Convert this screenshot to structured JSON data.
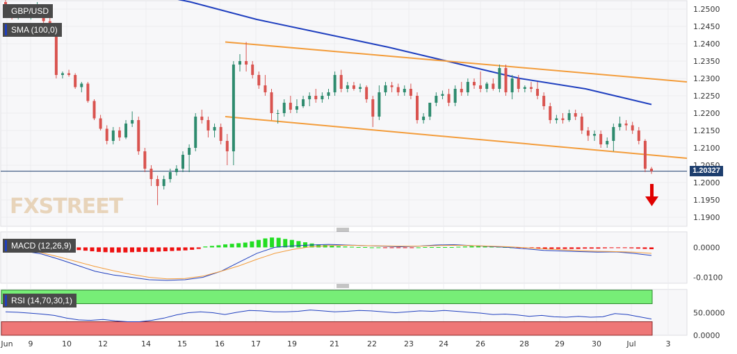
{
  "symbol": "GBP/USD",
  "sma_label": "SMA (100,0)",
  "macd_label": "MACD (12,26,9)",
  "rsi_label": "RSI (14,70,30,1)",
  "current_price": "1.20327",
  "watermark": "FXSTREET",
  "colors": {
    "bull": "#2e8b6e",
    "bear": "#d9534f",
    "sma": "#1f3fbf",
    "channel": "#f39c3a",
    "macd_pos": "#22dd22",
    "macd_neg": "#ee1111",
    "rsi_over": "#77ee77",
    "rsi_under": "#ee7777",
    "arrow": "#e00000"
  },
  "chart_data": [
    {
      "type": "candlestick",
      "title": "GBP/USD",
      "x_ticks": [
        "Jun",
        "9",
        "10",
        "12",
        "14",
        "15",
        "16",
        "17",
        "19",
        "21",
        "22",
        "23",
        "24",
        "26",
        "28",
        "29",
        "30",
        "Jul",
        "3"
      ],
      "y_ticks": [
        "1.2500",
        "1.2450",
        "1.2400",
        "1.2350",
        "1.2300",
        "1.2250",
        "1.2200",
        "1.2150",
        "1.2100",
        "1.2050",
        "1.2000",
        "1.1950",
        "1.1900"
      ],
      "ylim": [
        1.188,
        1.252
      ],
      "candles": [
        [
          1.252,
          1.254,
          1.248,
          1.25
        ],
        [
          1.25,
          1.251,
          1.247,
          1.2485
        ],
        [
          1.2485,
          1.2495,
          1.247,
          1.249
        ],
        [
          1.249,
          1.251,
          1.2475,
          1.248
        ],
        [
          1.248,
          1.249,
          1.247,
          1.2485
        ],
        [
          1.2485,
          1.252,
          1.2475,
          1.25
        ],
        [
          1.25,
          1.251,
          1.246,
          1.2465
        ],
        [
          1.2465,
          1.2475,
          1.242,
          1.243
        ],
        [
          1.243,
          1.244,
          1.23,
          1.231
        ],
        [
          1.231,
          1.232,
          1.23,
          1.2315
        ],
        [
          1.2315,
          1.2325,
          1.2305,
          1.231
        ],
        [
          1.231,
          1.2315,
          1.227,
          1.2275
        ],
        [
          1.2275,
          1.229,
          1.226,
          1.2285
        ],
        [
          1.2285,
          1.229,
          1.223,
          1.2235
        ],
        [
          1.2235,
          1.224,
          1.218,
          1.2185
        ],
        [
          1.2185,
          1.2195,
          1.215,
          1.2155
        ],
        [
          1.2155,
          1.2165,
          1.211,
          1.212
        ],
        [
          1.212,
          1.216,
          1.211,
          1.215
        ],
        [
          1.215,
          1.216,
          1.212,
          1.213
        ],
        [
          1.213,
          1.218,
          1.2125,
          1.217
        ],
        [
          1.217,
          1.2205,
          1.216,
          1.218
        ],
        [
          1.218,
          1.219,
          1.208,
          1.209
        ],
        [
          1.209,
          1.21,
          1.203,
          1.204
        ],
        [
          1.204,
          1.205,
          1.199,
          1.201
        ],
        [
          1.201,
          1.202,
          1.1935,
          1.199
        ],
        [
          1.199,
          1.202,
          1.198,
          1.201
        ],
        [
          1.201,
          1.204,
          1.2,
          1.203
        ],
        [
          1.203,
          1.205,
          1.202,
          1.204
        ],
        [
          1.204,
          1.209,
          1.203,
          1.208
        ],
        [
          1.208,
          1.211,
          1.203,
          1.21
        ],
        [
          1.21,
          1.22,
          1.209,
          1.219
        ],
        [
          1.219,
          1.221,
          1.217,
          1.218
        ],
        [
          1.218,
          1.219,
          1.213,
          1.215
        ],
        [
          1.215,
          1.217,
          1.213,
          1.216
        ],
        [
          1.216,
          1.217,
          1.211,
          1.212
        ],
        [
          1.212,
          1.214,
          1.205,
          1.209
        ],
        [
          1.209,
          1.235,
          1.205,
          1.234
        ],
        [
          1.234,
          1.237,
          1.232,
          1.235
        ],
        [
          1.235,
          1.2405,
          1.232,
          1.234
        ],
        [
          1.234,
          1.235,
          1.23,
          1.231
        ],
        [
          1.231,
          1.232,
          1.227,
          1.228
        ],
        [
          1.228,
          1.231,
          1.225,
          1.226
        ],
        [
          1.226,
          1.227,
          1.218,
          1.22
        ],
        [
          1.22,
          1.221,
          1.217,
          1.22
        ],
        [
          1.22,
          1.224,
          1.219,
          1.223
        ],
        [
          1.223,
          1.225,
          1.22,
          1.221
        ],
        [
          1.221,
          1.224,
          1.22,
          1.222
        ],
        [
          1.222,
          1.225,
          1.2215,
          1.224
        ],
        [
          1.224,
          1.226,
          1.222,
          1.225
        ],
        [
          1.225,
          1.227,
          1.223,
          1.224
        ],
        [
          1.224,
          1.226,
          1.223,
          1.225
        ],
        [
          1.225,
          1.227,
          1.224,
          1.226
        ],
        [
          1.226,
          1.232,
          1.225,
          1.231
        ],
        [
          1.231,
          1.2325,
          1.226,
          1.227
        ],
        [
          1.227,
          1.229,
          1.226,
          1.228
        ],
        [
          1.228,
          1.229,
          1.2265,
          1.227
        ],
        [
          1.227,
          1.2285,
          1.226,
          1.2275
        ],
        [
          1.2275,
          1.228,
          1.223,
          1.224
        ],
        [
          1.224,
          1.225,
          1.216,
          1.219
        ],
        [
          1.219,
          1.228,
          1.218,
          1.226
        ],
        [
          1.226,
          1.229,
          1.225,
          1.228
        ],
        [
          1.228,
          1.229,
          1.226,
          1.2275
        ],
        [
          1.2275,
          1.2285,
          1.225,
          1.226
        ],
        [
          1.226,
          1.228,
          1.225,
          1.227
        ],
        [
          1.227,
          1.2285,
          1.224,
          1.225
        ],
        [
          1.225,
          1.226,
          1.217,
          1.218
        ],
        [
          1.218,
          1.22,
          1.217,
          1.219
        ],
        [
          1.219,
          1.223,
          1.218,
          1.223
        ],
        [
          1.223,
          1.226,
          1.222,
          1.225
        ],
        [
          1.225,
          1.2265,
          1.224,
          1.2255
        ],
        [
          1.2255,
          1.227,
          1.222,
          1.223
        ],
        [
          1.223,
          1.228,
          1.222,
          1.227
        ],
        [
          1.227,
          1.229,
          1.225,
          1.226
        ],
        [
          1.226,
          1.23,
          1.225,
          1.229
        ],
        [
          1.229,
          1.23,
          1.227,
          1.228
        ],
        [
          1.228,
          1.232,
          1.226,
          1.227
        ],
        [
          1.227,
          1.229,
          1.226,
          1.2285
        ],
        [
          1.2285,
          1.23,
          1.2265,
          1.227
        ],
        [
          1.227,
          1.234,
          1.226,
          1.233
        ],
        [
          1.233,
          1.234,
          1.225,
          1.226
        ],
        [
          1.226,
          1.231,
          1.224,
          1.23
        ],
        [
          1.23,
          1.231,
          1.226,
          1.227
        ],
        [
          1.227,
          1.228,
          1.226,
          1.2275
        ],
        [
          1.2275,
          1.229,
          1.226,
          1.227
        ],
        [
          1.227,
          1.229,
          1.224,
          1.225
        ],
        [
          1.225,
          1.226,
          1.221,
          1.222
        ],
        [
          1.222,
          1.223,
          1.217,
          1.218
        ],
        [
          1.218,
          1.2195,
          1.217,
          1.2185
        ],
        [
          1.2185,
          1.22,
          1.217,
          1.218
        ],
        [
          1.218,
          1.221,
          1.2175,
          1.22
        ],
        [
          1.22,
          1.221,
          1.218,
          1.219
        ],
        [
          1.219,
          1.22,
          1.214,
          1.215
        ],
        [
          1.215,
          1.216,
          1.212,
          1.2135
        ],
        [
          1.2135,
          1.215,
          1.212,
          1.214
        ],
        [
          1.214,
          1.215,
          1.21,
          1.211
        ],
        [
          1.211,
          1.213,
          1.21,
          1.212
        ],
        [
          1.212,
          1.217,
          1.209,
          1.216
        ],
        [
          1.216,
          1.219,
          1.215,
          1.217
        ],
        [
          1.217,
          1.218,
          1.215,
          1.2165
        ],
        [
          1.2165,
          1.2175,
          1.214,
          1.215
        ],
        [
          1.215,
          1.216,
          1.211,
          1.212
        ],
        [
          1.212,
          1.2125,
          1.203,
          1.204
        ],
        [
          1.204,
          1.2045,
          1.2025,
          1.2033
        ]
      ],
      "sma_100": [
        1.256,
        1.252,
        1.247,
        1.243,
        1.239,
        1.2345,
        1.23,
        1.227,
        1.2225
      ],
      "channel_upper": [
        1.2405,
        1.229
      ],
      "channel_lower": [
        1.219,
        1.207
      ],
      "current_price": 1.20327
    },
    {
      "type": "bar",
      "title": "MACD (12,26,9)",
      "y_ticks": [
        "0.0000",
        "-0.0100"
      ],
      "ylim": [
        -0.0115,
        0.0045
      ],
      "histogram": [
        -0.0003,
        -0.0003,
        -0.0003,
        -0.0003,
        -0.0003,
        -0.0004,
        -0.0004,
        -0.0004,
        -0.0004,
        -0.0005,
        -0.0007,
        -0.0009,
        -0.0011,
        -0.0013,
        -0.0015,
        -0.0016,
        -0.0017,
        -0.0017,
        -0.0017,
        -0.0016,
        -0.0015,
        -0.0015,
        -0.0015,
        -0.0014,
        -0.0013,
        -0.0012,
        -0.0011,
        -0.001,
        -0.0008,
        -0.0005,
        0.0003,
        0.0005,
        0.0007,
        0.001,
        0.0012,
        0.0014,
        0.0016,
        0.002,
        0.0025,
        0.003,
        0.0033,
        0.0032,
        0.0028,
        0.0025,
        0.0021,
        0.0017,
        0.0013,
        0.001,
        0.0008,
        0.0006,
        0.0004,
        0.0003,
        0.0002,
        0.0001,
        0.0001,
        0.0,
        0.0,
        -0.0001,
        -0.0002,
        -0.0002,
        -0.0001,
        -0.0001,
        0.0,
        0.0001,
        0.0001,
        0.0001,
        0.0001,
        0.0001,
        0.0002,
        0.0003,
        0.0004,
        0.0004,
        0.0003,
        0.0003,
        0.0002,
        0.0001,
        0.0,
        -0.0001,
        -0.0002,
        -0.0003,
        -0.0004,
        -0.0005,
        -0.0005,
        -0.0005,
        -0.0005,
        -0.0005,
        -0.0005,
        -0.0004,
        -0.0004,
        -0.0004,
        -0.0003,
        -0.0002,
        -0.0002,
        -0.0002,
        -0.0003,
        -0.0004,
        -0.0005,
        -0.0006
      ],
      "macd_line": [
        -0.0005,
        -0.0012,
        -0.0022,
        -0.004,
        -0.006,
        -0.008,
        -0.0092,
        -0.01,
        -0.0108,
        -0.011,
        -0.0108,
        -0.01,
        -0.008,
        -0.005,
        -0.002,
        0.0,
        0.0005,
        0.0008,
        0.001,
        0.0008,
        0.0006,
        0.0004,
        0.0002,
        0.0004,
        0.0008,
        0.0009,
        0.0006,
        0.0003,
        0.0,
        -0.0005,
        -0.001,
        -0.0012,
        -0.0014,
        -0.0016,
        -0.0015,
        -0.002,
        -0.0027
      ],
      "signal_line": [
        -0.0002,
        -0.0008,
        -0.0018,
        -0.0032,
        -0.0048,
        -0.0064,
        -0.0078,
        -0.009,
        -0.01,
        -0.0105,
        -0.0104,
        -0.0096,
        -0.008,
        -0.0062,
        -0.004,
        -0.002,
        -0.0007,
        0.0002,
        0.0006,
        0.0007,
        0.0006,
        0.0005,
        0.0004,
        0.0004,
        0.0006,
        0.0007,
        0.0006,
        0.0004,
        0.0002,
        -0.0001,
        -0.0005,
        -0.0008,
        -0.0011,
        -0.0013,
        -0.0014,
        -0.0016,
        -0.002
      ]
    },
    {
      "type": "line",
      "title": "RSI (14,70,30,1)",
      "y_ticks": [
        "50.0000",
        "0.0000"
      ],
      "ylim": [
        0,
        100
      ],
      "overbought": 70,
      "oversold": 30,
      "rsi": [
        52,
        51,
        49,
        47,
        44,
        38,
        34,
        33,
        35,
        32,
        30,
        30,
        33,
        38,
        45,
        50,
        52,
        50,
        46,
        51,
        55,
        54,
        52,
        52,
        53,
        56,
        54,
        52,
        53,
        55,
        54,
        52,
        50,
        52,
        54,
        53,
        55,
        53,
        51,
        49,
        46,
        47,
        45,
        42,
        44,
        41,
        40,
        42,
        40,
        41,
        48,
        46,
        41,
        36
      ]
    }
  ]
}
